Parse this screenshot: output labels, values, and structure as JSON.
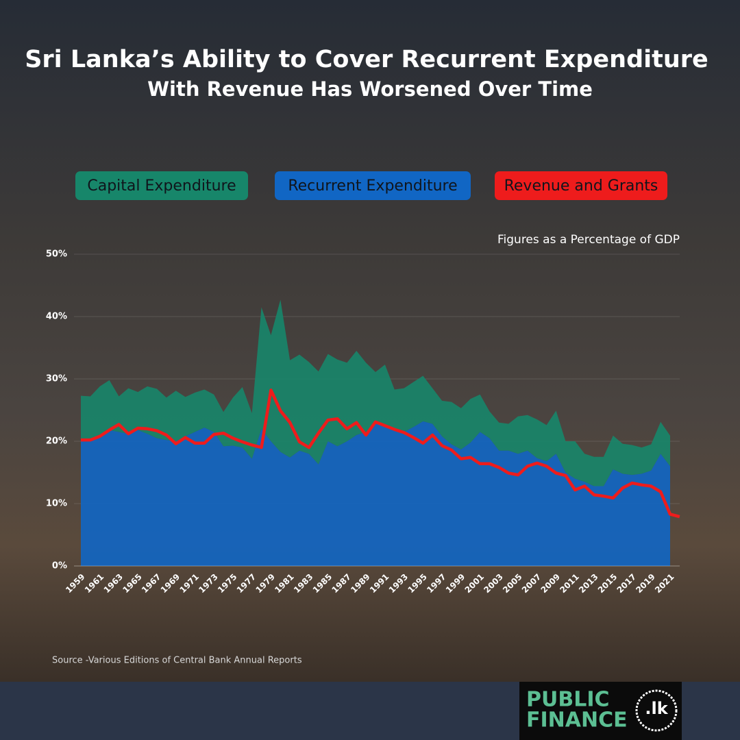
{
  "chart_data": {
    "type": "area",
    "title": "Sri Lanka’s Ability to Cover Recurrent Expenditure",
    "subtitle": "With Revenue Has Worsened Over Time",
    "note": "Figures as a Percentage of GDP",
    "source": "Source -Various Editions of Central Bank Annual Reports",
    "categories": [
      "1959",
      null,
      "1961",
      null,
      "1963",
      null,
      "1965",
      null,
      "1967",
      null,
      "1969",
      null,
      "1971",
      null,
      "1973",
      null,
      "1975",
      null,
      "1977",
      null,
      "1979",
      null,
      "1981",
      null,
      "1983",
      null,
      "1985",
      null,
      "1987",
      null,
      "1989",
      null,
      "1991",
      null,
      "1993",
      null,
      "1995",
      null,
      "1997",
      null,
      "1999",
      null,
      "2001",
      null,
      "2003",
      null,
      "2005",
      null,
      "2007",
      null,
      "2009",
      null,
      "2011",
      null,
      "2013",
      null,
      "2015",
      null,
      "2017",
      null,
      "2019",
      null,
      "2021",
      null
    ],
    "series": [
      {
        "name": "Capital Expenditure",
        "type": "area",
        "color": "#17866a",
        "values": [
          7.3,
          6.7,
          8.0,
          8.0,
          5.7,
          7.3,
          6.1,
          7.6,
          7.9,
          6.8,
          8.1,
          6.3,
          6.3,
          6.1,
          6.0,
          5.5,
          7.7,
          9.7,
          7.3,
          19.5,
          17.0,
          24.4,
          15.6,
          15.4,
          14.7,
          14.9,
          14.0,
          13.9,
          12.6,
          13.5,
          11.1,
          8.3,
          9.8,
          6.3,
          7.0,
          7.2,
          7.3,
          5.7,
          5.7,
          6.8,
          6.6,
          7.0,
          6.0,
          4.3,
          4.5,
          4.3,
          6.0,
          5.7,
          6.2,
          5.8,
          6.9,
          5.0,
          6.0,
          4.5,
          4.7,
          4.7,
          5.4,
          4.8,
          4.8,
          4.2,
          4.2,
          5.1,
          4.9,
          null
        ]
      },
      {
        "name": "Recurrent Expenditure",
        "type": "area",
        "color": "#1166c4",
        "values": [
          20.0,
          20.5,
          20.8,
          21.8,
          21.5,
          21.2,
          21.8,
          21.2,
          20.5,
          20.2,
          20.0,
          20.8,
          21.5,
          22.2,
          21.5,
          19.2,
          19.3,
          19.0,
          17.2,
          22.0,
          20.0,
          18.3,
          17.4,
          18.5,
          18.0,
          16.3,
          20.0,
          19.2,
          20.0,
          21.0,
          21.5,
          22.8,
          22.5,
          22.0,
          21.5,
          22.3,
          23.2,
          22.8,
          20.8,
          19.5,
          18.7,
          19.8,
          21.5,
          20.5,
          18.5,
          18.5,
          18.0,
          18.5,
          17.3,
          16.8,
          18.0,
          15.0,
          14.0,
          13.5,
          12.8,
          12.8,
          15.5,
          14.8,
          14.6,
          14.8,
          15.3,
          18.0,
          16.0,
          null
        ]
      },
      {
        "name": "Revenue and Grants",
        "type": "line",
        "color": "#ee1c1c",
        "values": [
          20.2,
          20.2,
          20.8,
          21.8,
          22.7,
          21.2,
          22.1,
          22.0,
          21.7,
          21.0,
          19.6,
          20.6,
          19.7,
          19.7,
          21.1,
          21.3,
          20.5,
          19.9,
          19.4,
          19.0,
          28.2,
          24.9,
          23.0,
          19.9,
          19.0,
          21.3,
          23.4,
          23.6,
          22.0,
          23.0,
          21.0,
          23.1,
          22.5,
          21.9,
          21.4,
          20.6,
          19.7,
          21.0,
          19.3,
          18.6,
          17.2,
          17.4,
          16.4,
          16.4,
          15.8,
          14.9,
          14.6,
          16.0,
          16.5,
          16.0,
          14.9,
          14.5,
          12.2,
          12.8,
          11.4,
          11.2,
          10.9,
          12.5,
          13.3,
          13.0,
          12.8,
          11.9,
          8.3,
          7.9
        ]
      }
    ],
    "ylim": [
      0,
      50
    ],
    "yticks": [
      {
        "value": 0,
        "label": "0%"
      },
      {
        "value": 10,
        "label": "10%"
      },
      {
        "value": 20,
        "label": "20%"
      },
      {
        "value": 30,
        "label": "30%"
      },
      {
        "value": 40,
        "label": "40%"
      },
      {
        "value": 50,
        "label": "50%"
      }
    ],
    "grid": true
  },
  "logo": {
    "line1": "PUBLIC",
    "line2": "FINANCE",
    "mark": ".lk"
  }
}
